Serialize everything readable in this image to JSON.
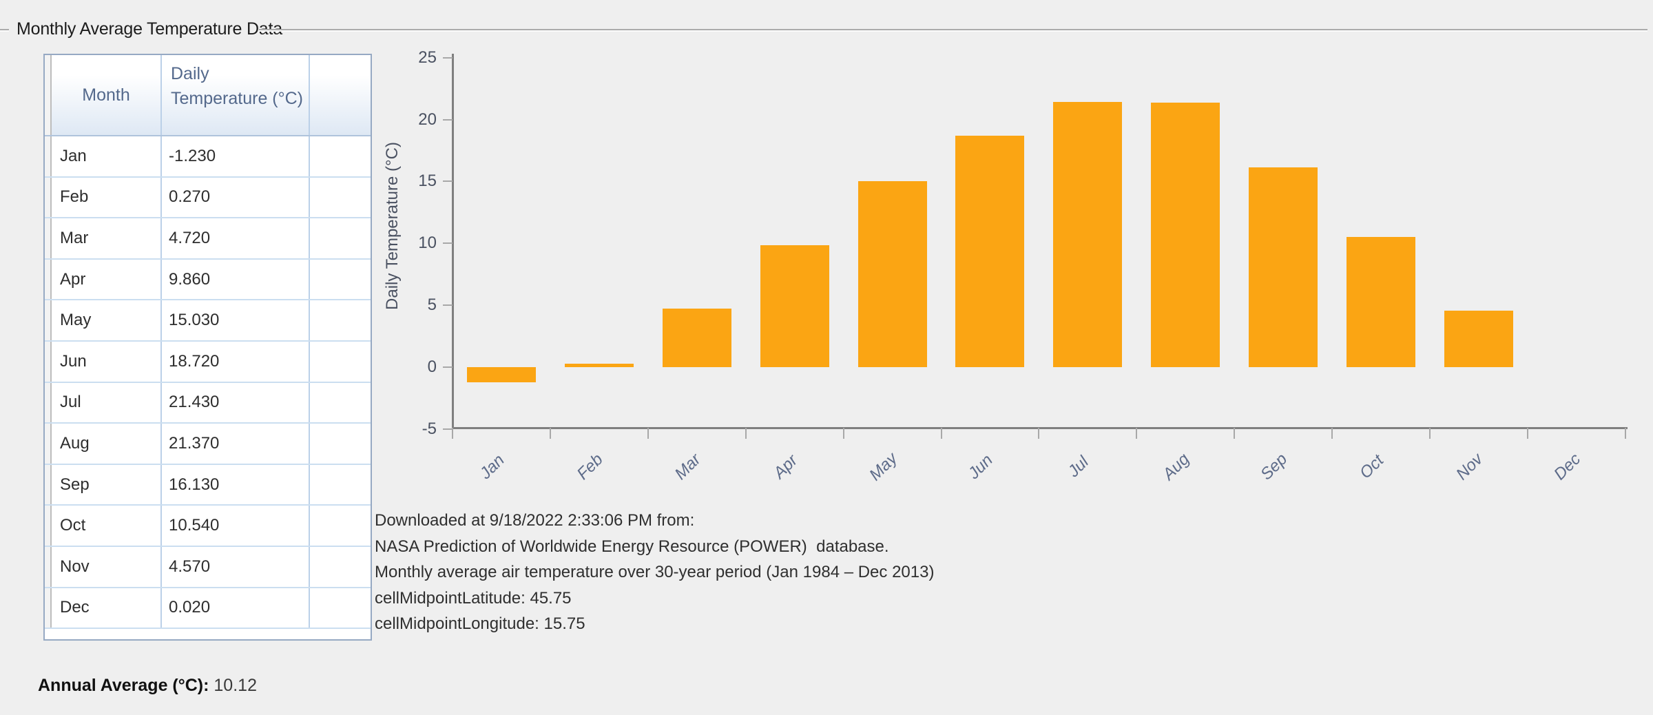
{
  "group": {
    "title": "Monthly Average Temperature Data"
  },
  "table": {
    "headers": {
      "month": "Month",
      "value": "Daily Temperature (°C)"
    },
    "rows": [
      {
        "month": "Jan",
        "value": "-1.230"
      },
      {
        "month": "Feb",
        "value": "0.270"
      },
      {
        "month": "Mar",
        "value": "4.720"
      },
      {
        "month": "Apr",
        "value": "9.860"
      },
      {
        "month": "May",
        "value": "15.030"
      },
      {
        "month": "Jun",
        "value": "18.720"
      },
      {
        "month": "Jul",
        "value": "21.430"
      },
      {
        "month": "Aug",
        "value": "21.370"
      },
      {
        "month": "Sep",
        "value": "16.130"
      },
      {
        "month": "Oct",
        "value": "10.540"
      },
      {
        "month": "Nov",
        "value": "4.570"
      },
      {
        "month": "Dec",
        "value": "0.020"
      }
    ]
  },
  "annual": {
    "label": "Annual Average (°C):",
    "value": "10.12"
  },
  "notes": [
    "Downloaded at 9/18/2022 2:33:06 PM from:",
    "NASA Prediction of Worldwide Energy Resource (POWER)  database.",
    "Monthly average air temperature over 30-year period (Jan 1984 – Dec 2013)",
    "cellMidpointLatitude: 45.75",
    "cellMidpointLongitude: 15.75"
  ],
  "chart_data": {
    "type": "bar",
    "categories": [
      "Jan",
      "Feb",
      "Mar",
      "Apr",
      "May",
      "Jun",
      "Jul",
      "Aug",
      "Sep",
      "Oct",
      "Nov",
      "Dec"
    ],
    "values": [
      -1.23,
      0.27,
      4.72,
      9.86,
      15.03,
      18.72,
      21.43,
      21.37,
      16.13,
      10.54,
      4.57,
      0.02
    ],
    "title": "",
    "xlabel": "",
    "ylabel": "Daily Temperature (°C)",
    "ylim": [
      -5,
      25
    ],
    "ytick_step": 5,
    "grid": false,
    "legend": false,
    "bar_color": "#FBA513",
    "axis_color": "#7F7F7F",
    "background_color": "#EFEFEF"
  }
}
